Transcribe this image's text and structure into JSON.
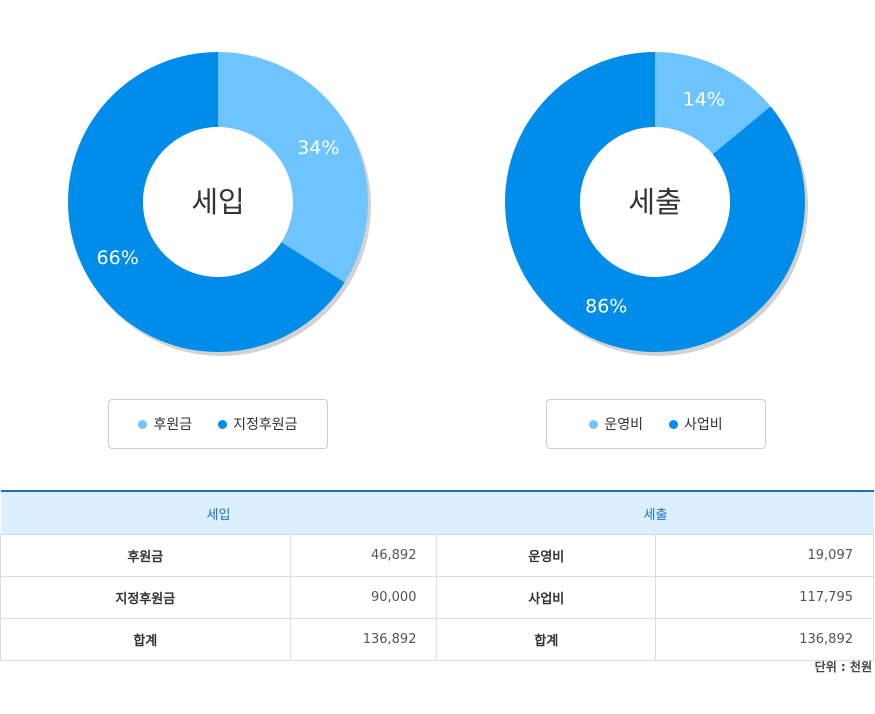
{
  "chart_data": [
    {
      "type": "pie",
      "title": "세입",
      "categories": [
        "후원금",
        "지정후원금"
      ],
      "values": [
        34,
        66
      ],
      "labels": [
        "34%",
        "66%"
      ],
      "colors": [
        "#6ec4ff",
        "#008ce9"
      ]
    },
    {
      "type": "pie",
      "title": "세출",
      "categories": [
        "운영비",
        "사업비"
      ],
      "values": [
        14,
        86
      ],
      "labels": [
        "14%",
        "86%"
      ],
      "colors": [
        "#6ec4ff",
        "#008ce9"
      ]
    }
  ],
  "table": {
    "headers": [
      "세입",
      "세출"
    ],
    "rows": [
      {
        "in_label": "후원금",
        "in_value": "46,892",
        "out_label": "운영비",
        "out_value": "19,097"
      },
      {
        "in_label": "지정후원금",
        "in_value": "90,000",
        "out_label": "사업비",
        "out_value": "117,795"
      },
      {
        "in_label": "합계",
        "in_value": "136,892",
        "out_label": "합계",
        "out_value": "136,892"
      }
    ]
  },
  "unit_note": "단위 : 천원",
  "colors": {
    "light": "#6ec4ff",
    "dark": "#008ce9",
    "header_bg": "#dcefff",
    "header_text": "#1a73c8"
  }
}
